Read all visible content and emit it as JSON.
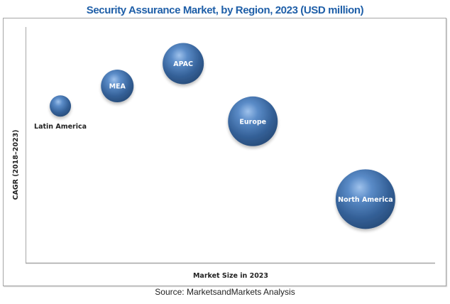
{
  "chart_data": {
    "type": "bubble",
    "title": "Security Assurance Market, by Region, 2023 (USD million)",
    "xlabel": "Market Size in 2023",
    "ylabel": "CAGR (2018–2023)",
    "xlim": [
      0,
      100
    ],
    "ylim": [
      0,
      100
    ],
    "grid": false,
    "legend": "none",
    "units_note": "relative positions (no numeric ticks shown)",
    "series": [
      {
        "name": "Latin America",
        "x": 8.5,
        "y": 66.5,
        "size": 15,
        "label_position": "below"
      },
      {
        "name": "MEA",
        "x": 22.4,
        "y": 75,
        "size": 23,
        "label_position": "center"
      },
      {
        "name": "APAC",
        "x": 38.5,
        "y": 84.5,
        "size": 29,
        "label_position": "center"
      },
      {
        "name": "Europe",
        "x": 55.5,
        "y": 60,
        "size": 35,
        "label_position": "center"
      },
      {
        "name": "North America",
        "x": 83,
        "y": 27,
        "size": 42,
        "label_position": "center"
      }
    ],
    "bubble_color": "#3f6ea8",
    "title_color": "#1f5fa8"
  },
  "source": "Source: MarketsandMarkets Analysis"
}
